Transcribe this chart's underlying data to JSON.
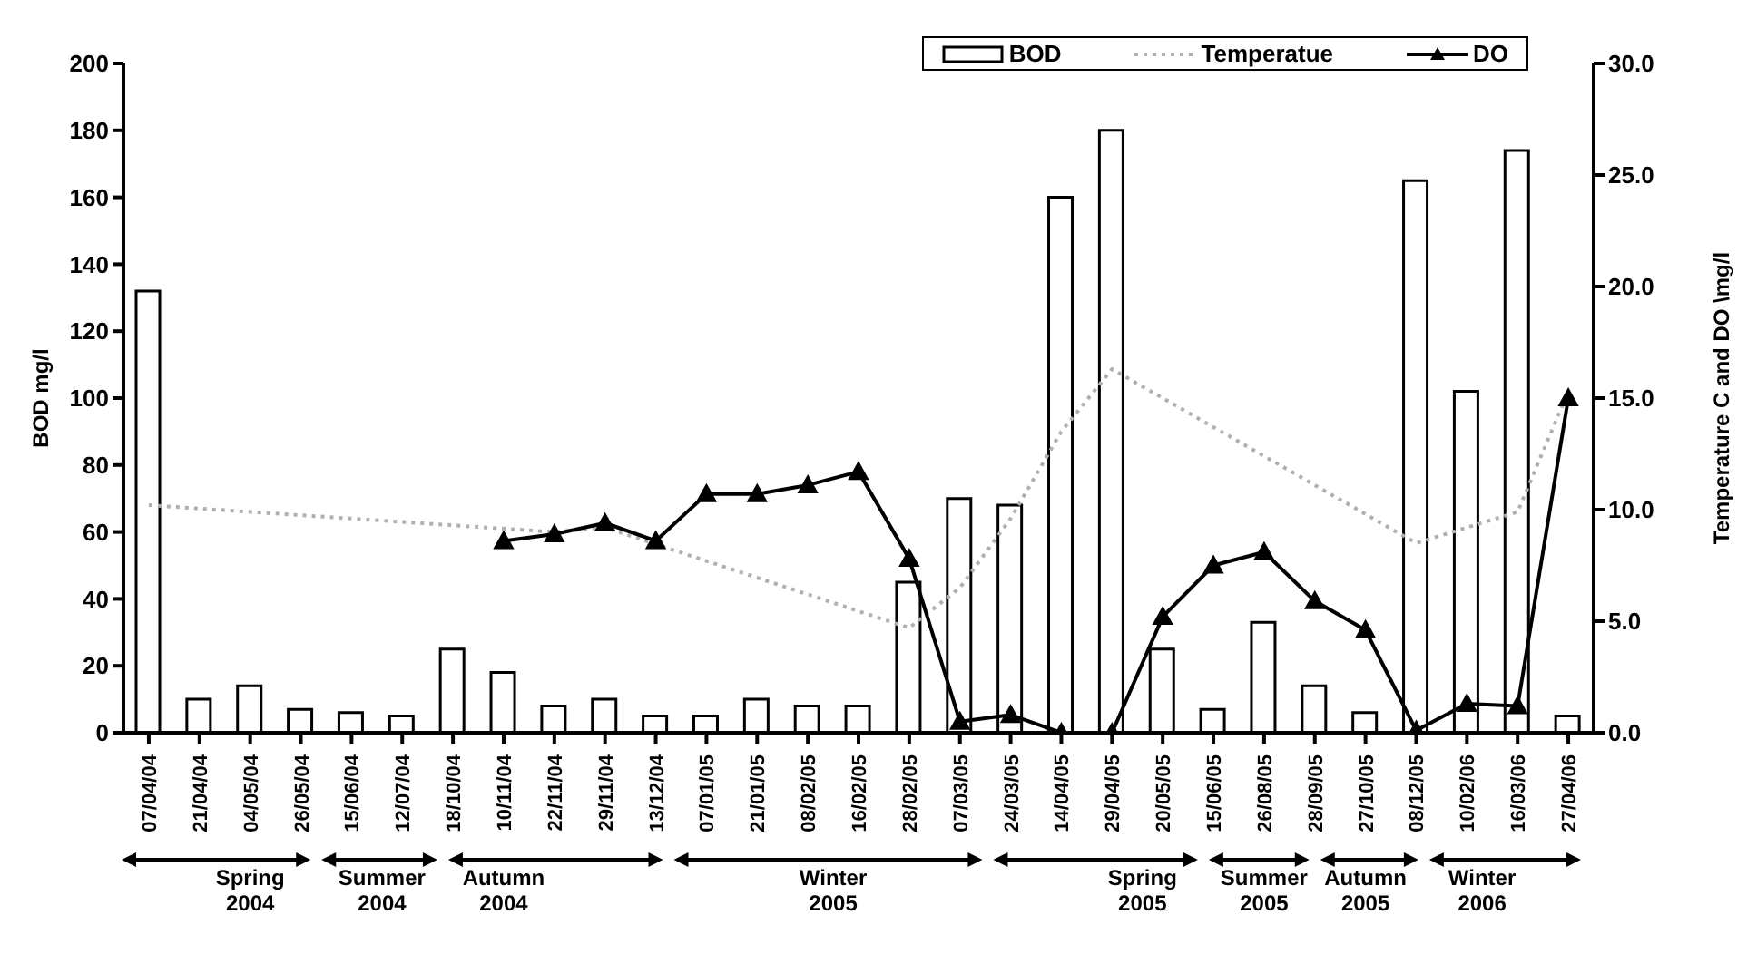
{
  "chart_data": {
    "type": "bar",
    "ylabel": "BOD  mg/l",
    "y2label": "Temperature  C and DO \\mg/l",
    "categories": [
      "07/04/04",
      "21/04/04",
      "04/05/04",
      "26/05/04",
      "15/06/04",
      "12/07/04",
      "18/10/04",
      "10/11/04",
      "22/11/04",
      "29/11/04",
      "13/12/04",
      "07/01/05",
      "21/01/05",
      "08/02/05",
      "16/02/05",
      "28/02/05",
      "07/03/05",
      "24/03/05",
      "14/04/05",
      "29/04/05",
      "20/05/05",
      "15/06/05",
      "26/08/05",
      "28/09/05",
      "27/10/05",
      "08/12/05",
      "10/02/06",
      "16/03/06",
      "27/04/06"
    ],
    "series": [
      {
        "name": "BOD",
        "color": "#ffffff",
        "values": [
          132,
          10,
          14,
          7,
          6,
          5,
          25,
          18,
          8,
          10,
          5,
          5,
          10,
          8,
          8,
          45,
          70,
          68,
          160,
          180,
          25,
          7,
          33,
          14,
          6,
          165,
          102,
          174,
          5
        ]
      },
      {
        "name": "Temperatue",
        "type": "line",
        "axis": "y2",
        "color": "#b0b0b0",
        "line_style": "dotted",
        "marker": "none",
        "values": [
          10.2,
          null,
          null,
          null,
          null,
          null,
          null,
          null,
          9,
          9.2,
          null,
          null,
          null,
          null,
          null,
          4.7,
          6.5,
          9.6,
          13.5,
          16.3,
          null,
          null,
          null,
          null,
          null,
          8.5,
          null,
          9.9,
          15.3
        ]
      },
      {
        "name": "DO",
        "type": "line",
        "axis": "y2",
        "color": "#000000",
        "line_style": "solid",
        "marker": "triangle",
        "values": [
          null,
          null,
          null,
          null,
          null,
          null,
          null,
          8.6,
          8.9,
          9.4,
          8.6,
          10.7,
          10.7,
          11.1,
          11.7,
          7.8,
          0.5,
          0.8,
          0,
          0,
          5.2,
          7.5,
          8.1,
          5.9,
          4.6,
          0.1,
          1.3,
          1.2,
          15
        ]
      }
    ],
    "ylim": [
      0,
      200
    ],
    "yticks": [
      0,
      20,
      40,
      60,
      80,
      100,
      120,
      140,
      160,
      180,
      200
    ],
    "y2lim": [
      0,
      30
    ],
    "y2ticks": [
      {
        "value": 0,
        "label": "0.0"
      },
      {
        "value": 5,
        "label": "5.0"
      },
      {
        "value": 10,
        "label": "10.0"
      },
      {
        "value": 15,
        "label": "15.0"
      },
      {
        "value": 20,
        "label": "20.0"
      },
      {
        "value": 25,
        "label": "25.0"
      },
      {
        "value": 30,
        "label": "30.0"
      }
    ],
    "grid": false,
    "legend": "top right",
    "annotations": [
      "Spring 2004",
      "Summer 2004",
      "Autumn 2004",
      "Winter 2005",
      "Spring 2005",
      "Summer 2005",
      "Autumn 2005",
      "Winter 2006"
    ]
  }
}
